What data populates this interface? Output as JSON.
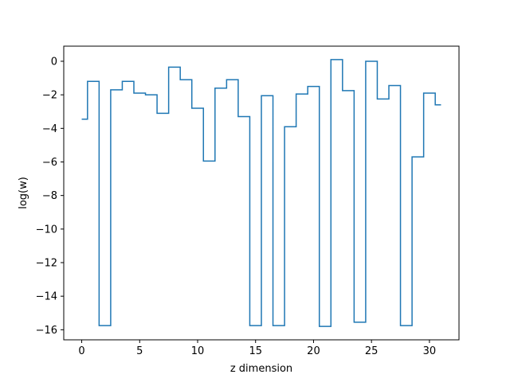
{
  "chart_data": {
    "type": "line",
    "drawstyle": "steps-mid",
    "title": "",
    "xlabel": "z dimension",
    "ylabel": "log(w)",
    "xlim": [
      -1.55,
      32.55
    ],
    "ylim": [
      -16.6,
      0.9
    ],
    "xticks": [
      0,
      5,
      10,
      15,
      20,
      25,
      30
    ],
    "yticks": [
      0,
      -2,
      -4,
      -6,
      -8,
      -10,
      -12,
      -14,
      -16
    ],
    "grid": false,
    "legend": "none",
    "series": [
      {
        "color": "#1f77b4",
        "x": [
          0,
          1,
          2,
          3,
          4,
          5,
          6,
          7,
          8,
          9,
          10,
          11,
          12,
          13,
          14,
          15,
          16,
          17,
          18,
          19,
          20,
          21,
          22,
          23,
          24,
          25,
          26,
          27,
          28,
          29,
          30,
          31
        ],
        "y": [
          -3.45,
          -1.2,
          -15.75,
          -1.7,
          -1.2,
          -1.9,
          -2.0,
          -3.1,
          -0.35,
          -1.1,
          -2.8,
          -5.95,
          -1.6,
          -1.1,
          -3.3,
          -15.75,
          -2.05,
          -15.75,
          -3.9,
          -1.95,
          -1.5,
          -15.8,
          0.1,
          -1.75,
          -15.55,
          0.0,
          -2.25,
          -1.45,
          -15.75,
          -5.7,
          -1.9,
          -2.6
        ]
      }
    ]
  }
}
